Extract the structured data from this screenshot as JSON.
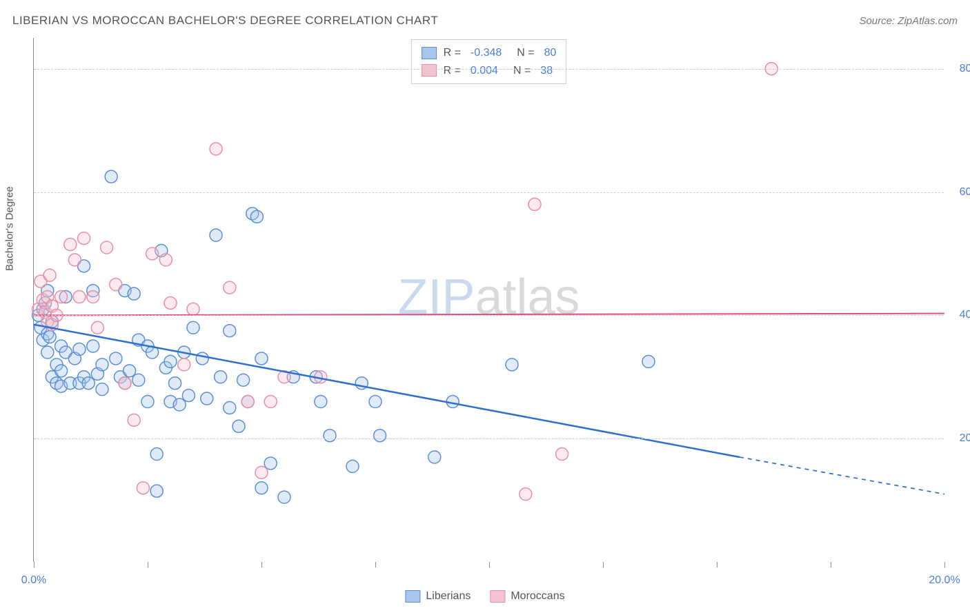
{
  "header": {
    "title": "LIBERIAN VS MOROCCAN BACHELOR'S DEGREE CORRELATION CHART",
    "source": "Source: ZipAtlas.com"
  },
  "y_axis_label": "Bachelor's Degree",
  "watermark": {
    "part1": "ZIP",
    "part2": "atlas"
  },
  "chart": {
    "type": "scatter",
    "xlim": [
      0,
      20
    ],
    "ylim": [
      0,
      85
    ],
    "x_ticks": [
      0,
      2.5,
      5,
      7.5,
      10,
      12.5,
      15,
      17.5,
      20
    ],
    "x_tick_labels": {
      "0": "0.0%",
      "20": "20.0%"
    },
    "y_gridlines": [
      20,
      40,
      60,
      80
    ],
    "y_tick_labels": {
      "20": "20.0%",
      "40": "40.0%",
      "60": "60.0%",
      "80": "80.0%"
    },
    "background_color": "#ffffff",
    "grid_color": "#cccccc",
    "marker_radius": 9,
    "marker_fill_opacity": 0.35,
    "marker_stroke_width": 1.5,
    "series": [
      {
        "name": "Liberians",
        "color_fill": "#a8c6ec",
        "color_stroke": "#5b8fd6",
        "R": "-0.348",
        "N": "80",
        "trend": {
          "x1": 0,
          "y1": 38.5,
          "x2_solid": 15.5,
          "y2_solid": 17,
          "x2_dash": 20,
          "y2_dash": 11,
          "stroke": "#2f6fd0",
          "width": 2.5
        },
        "points": [
          [
            0.1,
            40
          ],
          [
            0.15,
            38
          ],
          [
            0.2,
            41
          ],
          [
            0.2,
            36
          ],
          [
            0.25,
            42
          ],
          [
            0.3,
            34
          ],
          [
            0.3,
            37
          ],
          [
            0.3,
            44
          ],
          [
            0.35,
            36.5
          ],
          [
            0.4,
            39
          ],
          [
            0.4,
            30
          ],
          [
            0.5,
            29
          ],
          [
            0.5,
            32
          ],
          [
            0.6,
            31
          ],
          [
            0.6,
            35
          ],
          [
            0.6,
            28.5
          ],
          [
            0.7,
            34
          ],
          [
            0.7,
            43
          ],
          [
            0.8,
            29
          ],
          [
            0.9,
            33
          ],
          [
            1.0,
            29
          ],
          [
            1.0,
            34.5
          ],
          [
            1.1,
            48
          ],
          [
            1.1,
            30
          ],
          [
            1.2,
            29
          ],
          [
            1.3,
            44
          ],
          [
            1.3,
            35
          ],
          [
            1.4,
            30.5
          ],
          [
            1.5,
            32
          ],
          [
            1.5,
            28
          ],
          [
            1.7,
            62.5
          ],
          [
            1.8,
            33
          ],
          [
            1.9,
            30
          ],
          [
            2.0,
            29
          ],
          [
            2.0,
            44
          ],
          [
            2.1,
            31
          ],
          [
            2.2,
            43.5
          ],
          [
            2.3,
            29.5
          ],
          [
            2.3,
            36
          ],
          [
            2.5,
            35
          ],
          [
            2.5,
            26
          ],
          [
            2.6,
            34
          ],
          [
            2.7,
            11.5
          ],
          [
            2.7,
            17.5
          ],
          [
            2.8,
            50.5
          ],
          [
            2.9,
            31.5
          ],
          [
            3.0,
            26
          ],
          [
            3.0,
            32.5
          ],
          [
            3.1,
            29
          ],
          [
            3.2,
            25.5
          ],
          [
            3.3,
            34
          ],
          [
            3.4,
            27
          ],
          [
            3.5,
            38
          ],
          [
            3.7,
            33
          ],
          [
            3.8,
            26.5
          ],
          [
            4.0,
            53
          ],
          [
            4.1,
            30
          ],
          [
            4.3,
            37.5
          ],
          [
            4.3,
            25
          ],
          [
            4.5,
            22
          ],
          [
            4.6,
            29.5
          ],
          [
            4.7,
            26
          ],
          [
            4.8,
            56.5
          ],
          [
            4.9,
            56
          ],
          [
            5.0,
            33
          ],
          [
            5.0,
            12
          ],
          [
            5.2,
            16
          ],
          [
            5.5,
            10.5
          ],
          [
            5.7,
            30
          ],
          [
            6.2,
            30
          ],
          [
            6.3,
            26
          ],
          [
            6.5,
            20.5
          ],
          [
            7.0,
            15.5
          ],
          [
            7.2,
            29
          ],
          [
            7.5,
            26
          ],
          [
            7.6,
            20.5
          ],
          [
            8.8,
            17
          ],
          [
            9.2,
            26
          ],
          [
            10.5,
            32
          ],
          [
            13.5,
            32.5
          ]
        ]
      },
      {
        "name": "Moroccans",
        "color_fill": "#f5c3cf",
        "color_stroke": "#e68fa8",
        "R": "0.004",
        "N": "38",
        "trend": {
          "x1": 0,
          "y1": 40,
          "x2_solid": 20,
          "y2_solid": 40.3,
          "x2_dash": 20,
          "y2_dash": 40.3,
          "stroke": "#e14d7b",
          "width": 2
        },
        "points": [
          [
            0.1,
            41
          ],
          [
            0.15,
            45.5
          ],
          [
            0.2,
            42.5
          ],
          [
            0.25,
            40.5
          ],
          [
            0.3,
            43
          ],
          [
            0.3,
            39
          ],
          [
            0.35,
            46.5
          ],
          [
            0.4,
            38.5
          ],
          [
            0.4,
            41.5
          ],
          [
            0.5,
            40
          ],
          [
            0.6,
            43
          ],
          [
            0.8,
            51.5
          ],
          [
            0.9,
            49
          ],
          [
            1.0,
            43
          ],
          [
            1.1,
            52.5
          ],
          [
            1.3,
            43
          ],
          [
            1.4,
            38
          ],
          [
            1.6,
            51
          ],
          [
            1.8,
            45
          ],
          [
            2.0,
            29
          ],
          [
            2.2,
            23
          ],
          [
            2.4,
            12
          ],
          [
            2.6,
            50
          ],
          [
            2.9,
            49
          ],
          [
            3.0,
            42
          ],
          [
            3.3,
            32
          ],
          [
            3.5,
            41
          ],
          [
            4.0,
            67
          ],
          [
            4.3,
            44.5
          ],
          [
            4.7,
            26
          ],
          [
            5.0,
            14.5
          ],
          [
            5.2,
            26
          ],
          [
            5.5,
            30
          ],
          [
            6.3,
            30
          ],
          [
            10.8,
            11
          ],
          [
            11.0,
            58
          ],
          [
            11.6,
            17.5
          ],
          [
            16.2,
            80
          ]
        ]
      }
    ]
  },
  "legend_top": {
    "rows": [
      {
        "swatch_fill": "#a8c6ec",
        "swatch_stroke": "#5b8fd6",
        "r_label": "R =",
        "r_val": "-0.348",
        "n_label": "N =",
        "n_val": "80"
      },
      {
        "swatch_fill": "#f5c3cf",
        "swatch_stroke": "#e68fa8",
        "r_label": "R =",
        "r_val": "0.004",
        "n_label": "N =",
        "n_val": "38"
      }
    ]
  },
  "legend_bottom": {
    "items": [
      {
        "swatch_fill": "#a8c6ec",
        "swatch_stroke": "#5b8fd6",
        "label": "Liberians"
      },
      {
        "swatch_fill": "#f5c3cf",
        "swatch_stroke": "#e68fa8",
        "label": "Moroccans"
      }
    ]
  }
}
